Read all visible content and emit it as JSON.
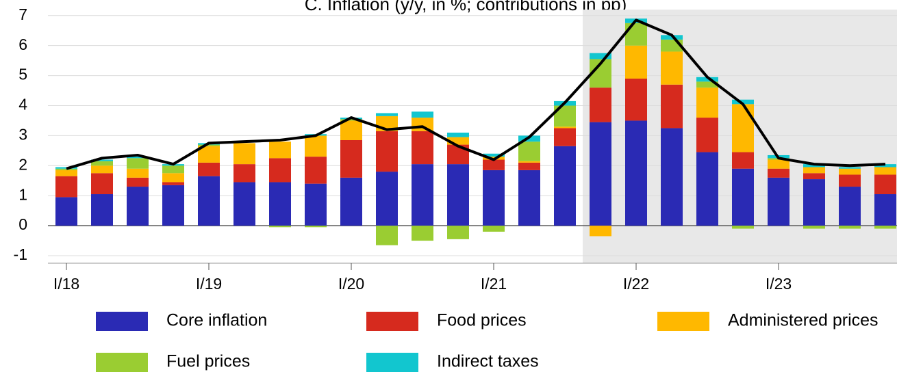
{
  "chart_data": {
    "type": "bar",
    "title": "C. Inflation (y/y, in %; contributions in pp)",
    "categories": [
      "I/18",
      null,
      null,
      null,
      "I/19",
      null,
      null,
      null,
      "I/20",
      null,
      null,
      null,
      "I/21",
      null,
      null,
      null,
      "I/22",
      null,
      null,
      null,
      "I/23",
      null,
      null,
      null
    ],
    "series": [
      {
        "name": "Core inflation",
        "color": "#2a2ab4",
        "values": [
          0.95,
          1.05,
          1.3,
          1.35,
          1.65,
          1.45,
          1.45,
          1.4,
          1.6,
          1.8,
          2.05,
          2.05,
          1.85,
          1.85,
          2.65,
          3.45,
          3.5,
          3.25,
          2.45,
          1.9,
          1.6,
          1.55,
          1.3,
          1.05
        ]
      },
      {
        "name": "Food prices",
        "color": "#d62a1e",
        "values": [
          0.7,
          0.7,
          0.3,
          0.1,
          0.45,
          0.6,
          0.8,
          0.9,
          1.25,
          1.35,
          1.1,
          0.65,
          0.35,
          0.25,
          0.6,
          1.15,
          1.4,
          1.45,
          1.15,
          0.55,
          0.3,
          0.2,
          0.4,
          0.65
        ]
      },
      {
        "name": "Administered prices",
        "color": "#ffb800",
        "values": [
          0.2,
          0.25,
          0.3,
          0.3,
          0.55,
          0.7,
          0.55,
          0.7,
          0.65,
          0.5,
          0.45,
          0.25,
          0.1,
          0.05,
          0.05,
          -0.35,
          1.1,
          1.1,
          1.0,
          1.6,
          0.3,
          0.2,
          0.2,
          0.25
        ]
      },
      {
        "name": "Fuel prices",
        "color": "#9acd32",
        "values": [
          0.05,
          0.15,
          0.35,
          0.25,
          0.05,
          0,
          -0.05,
          -0.05,
          0.05,
          -0.65,
          -0.5,
          -0.45,
          -0.2,
          0.65,
          0.7,
          0.95,
          0.75,
          0.4,
          0.2,
          -0.1,
          0.05,
          -0.1,
          -0.1,
          -0.1
        ]
      },
      {
        "name": "Indirect taxes",
        "color": "#12c6cf",
        "values": [
          0.05,
          0.05,
          0.05,
          0.05,
          0.05,
          0,
          0,
          0.05,
          0.05,
          0.1,
          0.2,
          0.15,
          0.1,
          0.2,
          0.15,
          0.2,
          0.15,
          0.15,
          0.15,
          0.15,
          0.1,
          0.1,
          0.05,
          0.1
        ]
      }
    ],
    "line": {
      "color": "#000000",
      "values": [
        1.9,
        2.25,
        2.35,
        2.05,
        2.75,
        2.8,
        2.85,
        3.0,
        3.6,
        3.2,
        3.3,
        2.65,
        2.2,
        2.95,
        4.1,
        5.4,
        6.85,
        6.35,
        4.95,
        4.05,
        2.25,
        2.05,
        2.0,
        2.05
      ]
    },
    "ylim": [
      -1.25,
      7.2
    ],
    "yticks": [
      -1,
      0,
      1,
      2,
      3,
      4,
      5,
      6,
      7
    ],
    "grid": true
  }
}
